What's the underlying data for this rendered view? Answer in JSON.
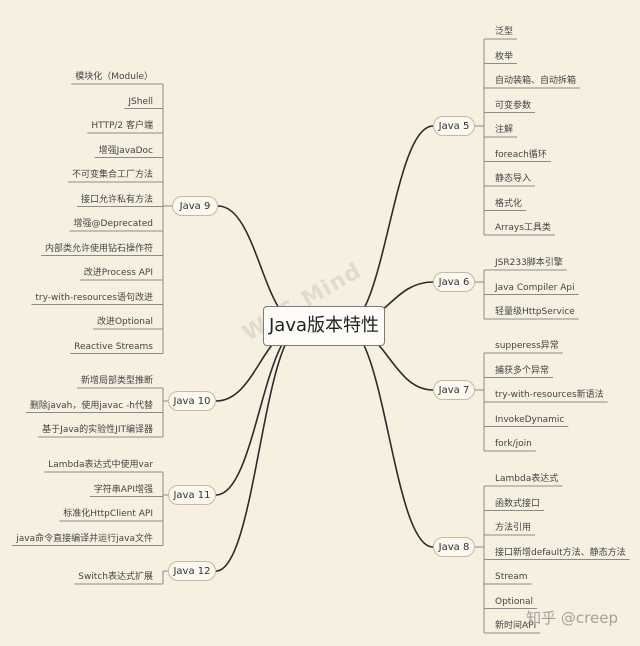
{
  "root": {
    "label": "Java版本特性"
  },
  "watermark": "WPS Mind",
  "brand_mark": "知乎 @creep",
  "right_branches": [
    {
      "id": "java5",
      "label": "Java 5",
      "items": [
        "泛型",
        "枚举",
        "自动装箱、自动拆箱",
        "可变参数",
        "注解",
        "foreach循环",
        "静态导入",
        "格式化",
        "Arrays工具类"
      ]
    },
    {
      "id": "java6",
      "label": "Java 6",
      "items": [
        "JSR233脚本引擎",
        "Java Compiler Api",
        "轻量级HttpService"
      ]
    },
    {
      "id": "java7",
      "label": "Java 7",
      "items": [
        "supperess异常",
        "捕获多个异常",
        "try-with-resources新语法",
        "InvokeDynamic",
        "fork/join"
      ]
    },
    {
      "id": "java8",
      "label": "Java 8",
      "items": [
        "Lambda表达式",
        "函数式接口",
        "方法引用",
        "接口新增default方法、静态方法",
        "Stream",
        "Optional",
        "新时间API"
      ]
    }
  ],
  "left_branches": [
    {
      "id": "java9",
      "label": "Java 9",
      "items": [
        "模块化（Module）",
        "JShell",
        "HTTP/2 客户端",
        "增强JavaDoc",
        "不可变集合工厂方法",
        "接口允许私有方法",
        "增强@Deprecated",
        "内部类允许使用钻石操作符",
        "改进Process API",
        "try-with-resources语句改进",
        "改进Optional",
        "Reactive Streams"
      ]
    },
    {
      "id": "java10",
      "label": "Java 10",
      "items": [
        "新增局部类型推断",
        "删除javah，使用javac -h代替",
        "基于Java的实验性JIT编译器"
      ]
    },
    {
      "id": "java11",
      "label": "Java 11",
      "items": [
        "Lambda表达式中使用var",
        "字符串API增强",
        "标准化HttpClient API",
        "java命令直接编译并运行java文件"
      ]
    },
    {
      "id": "java12",
      "label": "Java 12",
      "items": [
        "Switch表达式扩展"
      ]
    }
  ]
}
